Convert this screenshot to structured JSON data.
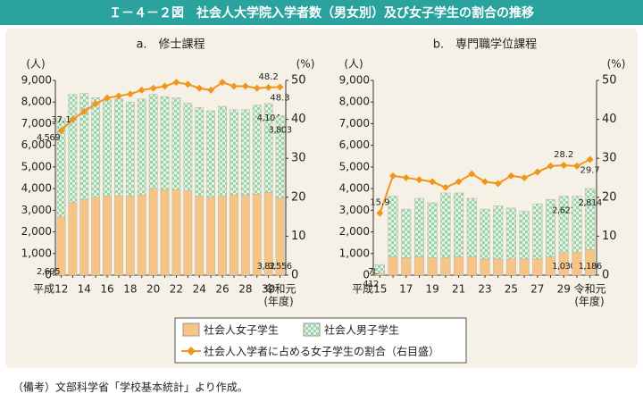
{
  "header": {
    "title": "Ｉ－４－２図　社会人大学院入学者数（男女別）及び女子学生の割合の推移"
  },
  "chart_data": [
    {
      "type": "bar",
      "stacked": true,
      "title": "a.　修士課程",
      "y_label": "(人)",
      "y2_label": "(%)",
      "x_label": "(年度)",
      "categories": [
        "平成12",
        null,
        "14",
        null,
        "16",
        null,
        "18",
        null,
        "20",
        null,
        "22",
        null,
        "24",
        null,
        "26",
        null,
        "28",
        null,
        "30",
        "令和元"
      ],
      "ylim": [
        0,
        9000
      ],
      "yticks": [
        0,
        {
          "value": 1000,
          "label": "1,000"
        },
        {
          "value": 2000,
          "label": "2,000"
        },
        {
          "value": 3000,
          "label": "3,000"
        },
        {
          "value": 4000,
          "label": "4,000"
        },
        {
          "value": 5000,
          "label": "5,000"
        },
        {
          "value": 6000,
          "label": "6,000"
        },
        {
          "value": 7000,
          "label": "7,000"
        },
        {
          "value": 8000,
          "label": "8,000"
        },
        {
          "value": 9000,
          "label": "9,000"
        }
      ],
      "y2lim": [
        0,
        50
      ],
      "y2ticks": [
        0,
        10,
        20,
        30,
        40,
        50
      ],
      "series": [
        {
          "name": "社会人女子学生",
          "type": "bar",
          "color": "#f6c485",
          "values": [
            2695,
            3350,
            3500,
            3600,
            3650,
            3650,
            3650,
            3700,
            4000,
            3950,
            3950,
            3900,
            3650,
            3600,
            3650,
            3700,
            3700,
            3750,
            3826,
            3556
          ],
          "value_labels": [
            "2,695",
            null,
            null,
            null,
            null,
            null,
            null,
            null,
            null,
            null,
            null,
            null,
            null,
            null,
            null,
            null,
            null,
            null,
            "3,826",
            "3,556"
          ]
        },
        {
          "name": "社会人男子学生",
          "type": "bar",
          "color": "#9ed3a8",
          "pattern": true,
          "values": [
            4569,
            5000,
            4900,
            4600,
            4450,
            4500,
            4350,
            4450,
            4350,
            4300,
            4250,
            4050,
            4100,
            4000,
            4150,
            3950,
            3950,
            4100,
            4104,
            3803
          ],
          "value_labels": [
            "4,569",
            null,
            null,
            null,
            null,
            null,
            null,
            null,
            null,
            null,
            null,
            null,
            null,
            null,
            null,
            null,
            null,
            null,
            "4,104",
            "3,803"
          ]
        },
        {
          "name": "社会人入学者に占める女子学生の割合（右目盛）",
          "type": "line",
          "axis": "y2",
          "color": "#f0961c",
          "values": [
            37.1,
            40,
            42,
            44,
            45.5,
            46,
            46.5,
            47.5,
            48,
            48.5,
            49.5,
            49,
            48,
            47.5,
            49.5,
            48.5,
            48.5,
            48,
            48.2,
            48.3
          ],
          "value_labels": [
            "37.1",
            null,
            null,
            null,
            null,
            null,
            null,
            null,
            null,
            null,
            null,
            null,
            null,
            null,
            null,
            null,
            null,
            null,
            "48.2",
            "48.3"
          ]
        }
      ]
    },
    {
      "type": "bar",
      "stacked": true,
      "title": "b.　専門職学位課程",
      "y_label": "(人)",
      "y2_label": "(%)",
      "x_label": "(年度)",
      "categories": [
        "平成15",
        null,
        "17",
        null,
        "19",
        null,
        "21",
        null,
        "23",
        null,
        "25",
        null,
        "27",
        null,
        "29",
        null,
        "令和元"
      ],
      "ylim": [
        0,
        9000
      ],
      "yticks": [
        0,
        {
          "value": 1000,
          "label": "1,000"
        },
        {
          "value": 2000,
          "label": "2,000"
        },
        {
          "value": 3000,
          "label": "3,000"
        },
        {
          "value": 4000,
          "label": "4,000"
        },
        {
          "value": 5000,
          "label": "5,000"
        },
        {
          "value": 6000,
          "label": "6,000"
        },
        {
          "value": 7000,
          "label": "7,000"
        },
        {
          "value": 8000,
          "label": "8,000"
        },
        {
          "value": 9000,
          "label": "9,000"
        }
      ],
      "y2lim": [
        0,
        50
      ],
      "y2ticks": [
        0,
        10,
        20,
        30,
        40,
        50
      ],
      "series": [
        {
          "name": "社会人女子学生",
          "type": "bar",
          "color": "#f6c485",
          "values": [
            78,
            850,
            800,
            850,
            800,
            800,
            850,
            850,
            750,
            750,
            750,
            750,
            750,
            850,
            1030,
            1050,
            1186
          ],
          "value_labels": [
            "78",
            null,
            null,
            null,
            null,
            null,
            null,
            null,
            null,
            null,
            null,
            null,
            null,
            null,
            "1,030",
            null,
            "1,186"
          ]
        },
        {
          "name": "社会人男子学生",
          "type": "bar",
          "color": "#9ed3a8",
          "pattern": true,
          "values": [
            412,
            2800,
            2250,
            2700,
            2550,
            3000,
            2950,
            2700,
            2300,
            2450,
            2350,
            2200,
            2550,
            2650,
            2621,
            2600,
            2814
          ],
          "value_labels": [
            "412",
            null,
            null,
            null,
            null,
            null,
            null,
            null,
            null,
            null,
            null,
            null,
            null,
            null,
            "2,621",
            null,
            "2,814"
          ]
        },
        {
          "name": "社会人入学者に占める女子学生の割合（右目盛）",
          "type": "line",
          "axis": "y2",
          "color": "#f0961c",
          "values": [
            15.9,
            25.5,
            25,
            24.5,
            24,
            22.5,
            24,
            26,
            24,
            23.5,
            25.5,
            25,
            26.5,
            28,
            28.2,
            28,
            29.7
          ],
          "value_labels": [
            "15.9",
            null,
            null,
            null,
            null,
            null,
            null,
            null,
            null,
            null,
            null,
            null,
            null,
            null,
            "28.2",
            null,
            "29.7"
          ]
        }
      ]
    }
  ],
  "note": "（備考）文部科学省「学校基本統計」より作成。"
}
